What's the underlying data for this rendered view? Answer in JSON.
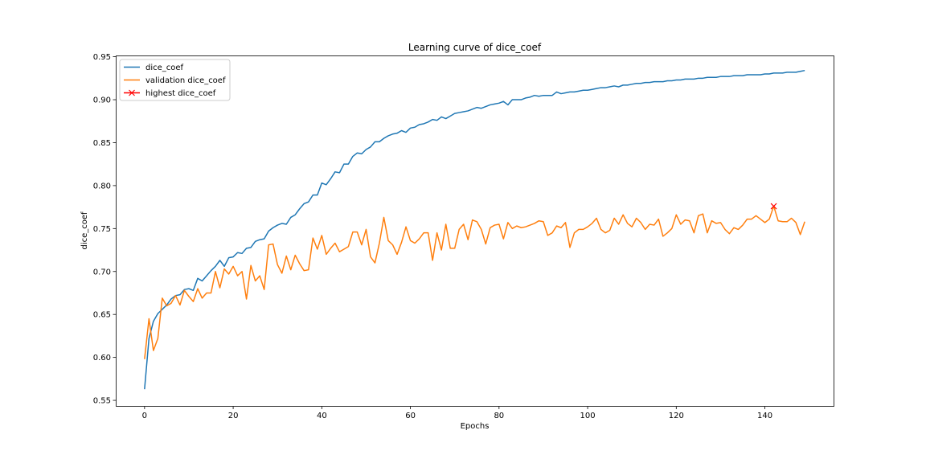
{
  "chart_data": {
    "type": "line",
    "title": "Learning curve of dice_coef",
    "xlabel": "Epochs",
    "ylabel": "dice_coef",
    "xlim": [
      -6.5,
      155.5
    ],
    "ylim": [
      0.5435,
      0.9515
    ],
    "x_ticks": [
      0,
      20,
      40,
      60,
      80,
      100,
      120,
      140
    ],
    "y_ticks": [
      0.55,
      0.6,
      0.65,
      0.7,
      0.75,
      0.8,
      0.85,
      0.9,
      0.95
    ],
    "y_tick_labels": [
      "0.55",
      "0.60",
      "0.65",
      "0.70",
      "0.75",
      "0.80",
      "0.85",
      "0.90",
      "0.95"
    ],
    "grid": false,
    "legend_position": "upper-left",
    "colors": {
      "train": "#1f77b4",
      "validation": "#ff7f0e",
      "highest": "#ff0000"
    },
    "series": [
      {
        "name": "dice_coef",
        "marker": "line",
        "values": [
          0.563,
          0.622,
          0.642,
          0.651,
          0.656,
          0.661,
          0.668,
          0.672,
          0.673,
          0.679,
          0.68,
          0.678,
          0.692,
          0.689,
          0.695,
          0.701,
          0.706,
          0.713,
          0.706,
          0.716,
          0.717,
          0.722,
          0.721,
          0.727,
          0.728,
          0.735,
          0.737,
          0.738,
          0.747,
          0.751,
          0.754,
          0.756,
          0.755,
          0.763,
          0.766,
          0.773,
          0.779,
          0.781,
          0.789,
          0.789,
          0.803,
          0.801,
          0.808,
          0.816,
          0.815,
          0.825,
          0.825,
          0.834,
          0.838,
          0.837,
          0.842,
          0.845,
          0.851,
          0.851,
          0.855,
          0.858,
          0.86,
          0.861,
          0.864,
          0.862,
          0.867,
          0.868,
          0.871,
          0.872,
          0.874,
          0.877,
          0.876,
          0.88,
          0.878,
          0.881,
          0.884,
          0.885,
          0.886,
          0.887,
          0.889,
          0.891,
          0.89,
          0.892,
          0.894,
          0.895,
          0.896,
          0.898,
          0.894,
          0.9,
          0.9,
          0.9,
          0.902,
          0.903,
          0.905,
          0.904,
          0.905,
          0.905,
          0.905,
          0.909,
          0.907,
          0.908,
          0.909,
          0.909,
          0.91,
          0.911,
          0.911,
          0.912,
          0.913,
          0.914,
          0.914,
          0.915,
          0.916,
          0.915,
          0.917,
          0.917,
          0.918,
          0.919,
          0.919,
          0.92,
          0.92,
          0.921,
          0.921,
          0.921,
          0.922,
          0.922,
          0.923,
          0.923,
          0.924,
          0.924,
          0.924,
          0.925,
          0.925,
          0.926,
          0.926,
          0.926,
          0.927,
          0.927,
          0.927,
          0.928,
          0.928,
          0.928,
          0.929,
          0.929,
          0.929,
          0.929,
          0.93,
          0.93,
          0.931,
          0.931,
          0.931,
          0.932,
          0.932,
          0.932,
          0.933,
          0.934
        ]
      },
      {
        "name": "validation dice_coef",
        "marker": "line",
        "values": [
          0.598,
          0.645,
          0.608,
          0.622,
          0.669,
          0.66,
          0.663,
          0.672,
          0.661,
          0.678,
          0.671,
          0.665,
          0.68,
          0.669,
          0.675,
          0.675,
          0.7,
          0.681,
          0.703,
          0.697,
          0.706,
          0.695,
          0.7,
          0.668,
          0.707,
          0.689,
          0.695,
          0.679,
          0.731,
          0.732,
          0.708,
          0.698,
          0.718,
          0.702,
          0.719,
          0.709,
          0.701,
          0.702,
          0.739,
          0.726,
          0.742,
          0.72,
          0.727,
          0.733,
          0.723,
          0.726,
          0.729,
          0.746,
          0.746,
          0.731,
          0.749,
          0.717,
          0.71,
          0.733,
          0.763,
          0.736,
          0.731,
          0.72,
          0.734,
          0.752,
          0.736,
          0.733,
          0.738,
          0.745,
          0.745,
          0.713,
          0.745,
          0.725,
          0.755,
          0.727,
          0.727,
          0.749,
          0.755,
          0.737,
          0.76,
          0.758,
          0.749,
          0.732,
          0.751,
          0.754,
          0.755,
          0.738,
          0.757,
          0.75,
          0.753,
          0.751,
          0.752,
          0.754,
          0.756,
          0.759,
          0.758,
          0.742,
          0.745,
          0.753,
          0.751,
          0.757,
          0.728,
          0.745,
          0.749,
          0.749,
          0.752,
          0.756,
          0.762,
          0.749,
          0.745,
          0.748,
          0.762,
          0.755,
          0.766,
          0.756,
          0.752,
          0.762,
          0.757,
          0.749,
          0.755,
          0.754,
          0.761,
          0.741,
          0.745,
          0.75,
          0.766,
          0.755,
          0.76,
          0.759,
          0.745,
          0.765,
          0.767,
          0.745,
          0.759,
          0.756,
          0.757,
          0.749,
          0.744,
          0.751,
          0.749,
          0.754,
          0.761,
          0.761,
          0.765,
          0.761,
          0.757,
          0.761,
          0.776,
          0.759,
          0.758,
          0.758,
          0.762,
          0.757,
          0.743,
          0.758
        ]
      },
      {
        "name": "highest dice_coef",
        "marker": "x",
        "x": [
          142
        ],
        "values": [
          0.776
        ]
      }
    ]
  }
}
